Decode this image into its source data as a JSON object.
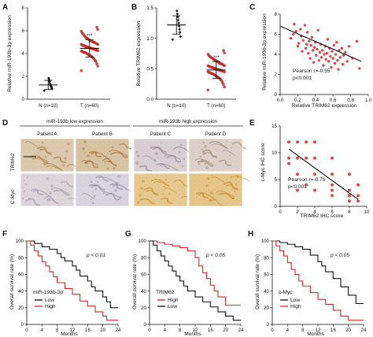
{
  "panels": {
    "A": {
      "label": "A",
      "chart_data": {
        "type": "scatter",
        "categories": [
          "N (n=10)",
          "T (n=60)"
        ],
        "ylabel": "Relative miR-193b-3p expression",
        "xlabel": "",
        "ylim": [
          0,
          8
        ],
        "yticks": [
          0,
          2,
          4,
          6,
          8
        ],
        "significance": [
          "",
          "***"
        ],
        "groups": [
          {
            "mean": 1.25,
            "sd": 0.4,
            "points": [
              0.75,
              0.9,
              1.0,
              1.1,
              1.2,
              1.3,
              1.4,
              1.55,
              1.7,
              1.85
            ]
          },
          {
            "mean": 4.45,
            "sd": 0.75,
            "points": [
              2.5,
              2.9,
              3.1,
              3.3,
              3.4,
              3.55,
              3.6,
              3.7,
              3.75,
              3.8,
              3.85,
              3.9,
              3.95,
              4.0,
              4.05,
              4.1,
              4.1,
              4.15,
              4.2,
              4.2,
              4.25,
              4.3,
              4.3,
              4.35,
              4.4,
              4.4,
              4.45,
              4.45,
              4.5,
              4.5,
              4.55,
              4.55,
              4.6,
              4.6,
              4.65,
              4.7,
              4.7,
              4.75,
              4.8,
              4.8,
              4.85,
              4.9,
              4.95,
              5.0,
              5.0,
              5.05,
              5.1,
              5.15,
              5.2,
              5.25,
              5.3,
              5.35,
              5.4,
              5.5,
              5.6,
              5.7,
              5.8,
              5.95,
              6.1,
              6.3
            ]
          }
        ]
      }
    },
    "B": {
      "label": "B",
      "chart_data": {
        "type": "scatter",
        "categories": [
          "N (n=10)",
          "T (n=60)"
        ],
        "ylabel": "Relative TRIM62 expression",
        "xlabel": "",
        "ylim": [
          0,
          1.5
        ],
        "yticks": [
          0.0,
          0.5,
          1.0,
          1.5
        ],
        "ytick_labels": [
          "0.0",
          "0.5",
          "1.0",
          "1.5"
        ],
        "significance": [
          "",
          "***"
        ],
        "groups": [
          {
            "mean": 1.22,
            "sd": 0.15,
            "points": [
              0.98,
              1.03,
              1.1,
              1.15,
              1.2,
              1.25,
              1.3,
              1.35,
              1.4,
              1.45
            ]
          },
          {
            "mean": 0.48,
            "sd": 0.14,
            "points": [
              0.15,
              0.2,
              0.24,
              0.27,
              0.3,
              0.32,
              0.34,
              0.35,
              0.36,
              0.37,
              0.38,
              0.39,
              0.4,
              0.41,
              0.42,
              0.42,
              0.43,
              0.44,
              0.44,
              0.45,
              0.45,
              0.46,
              0.46,
              0.47,
              0.47,
              0.48,
              0.48,
              0.49,
              0.49,
              0.5,
              0.5,
              0.51,
              0.51,
              0.52,
              0.52,
              0.53,
              0.53,
              0.54,
              0.55,
              0.55,
              0.56,
              0.57,
              0.58,
              0.58,
              0.59,
              0.6,
              0.61,
              0.62,
              0.63,
              0.64,
              0.65,
              0.66,
              0.67,
              0.68,
              0.69,
              0.7,
              0.72,
              0.74,
              0.76,
              0.8
            ]
          }
        ]
      }
    },
    "C": {
      "label": "C",
      "chart_data": {
        "type": "scatter",
        "xlabel": "Relative TRIM62 expression",
        "ylabel": "Relative miR-193b-3p expression",
        "xlim": [
          0,
          1.0
        ],
        "ylim": [
          0,
          8
        ],
        "xticks": [
          0.0,
          0.2,
          0.4,
          0.6,
          0.8,
          1.0
        ],
        "xtick_labels": [
          "0.0",
          "0.2",
          "0.4",
          "0.6",
          "0.8",
          "1.0"
        ],
        "yticks": [
          0,
          2,
          4,
          6,
          8
        ],
        "fit_line": {
          "x": [
            0.0,
            0.92
          ],
          "y": [
            6.8,
            3.3
          ]
        },
        "annotation": [
          "Pearson r=-0.55",
          "p<0.001"
        ],
        "points": [
          {
            "x": 0.12,
            "y": 5.6
          },
          {
            "x": 0.15,
            "y": 6.0
          },
          {
            "x": 0.16,
            "y": 7.0
          },
          {
            "x": 0.18,
            "y": 6.3
          },
          {
            "x": 0.2,
            "y": 4.8
          },
          {
            "x": 0.21,
            "y": 5.1
          },
          {
            "x": 0.23,
            "y": 6.5
          },
          {
            "x": 0.24,
            "y": 5.8
          },
          {
            "x": 0.25,
            "y": 4.3
          },
          {
            "x": 0.26,
            "y": 5.4
          },
          {
            "x": 0.28,
            "y": 6.9
          },
          {
            "x": 0.29,
            "y": 4.6
          },
          {
            "x": 0.3,
            "y": 5.0
          },
          {
            "x": 0.31,
            "y": 6.2
          },
          {
            "x": 0.32,
            "y": 4.1
          },
          {
            "x": 0.33,
            "y": 5.3
          },
          {
            "x": 0.34,
            "y": 3.6
          },
          {
            "x": 0.35,
            "y": 4.9
          },
          {
            "x": 0.36,
            "y": 5.7
          },
          {
            "x": 0.37,
            "y": 4.4
          },
          {
            "x": 0.38,
            "y": 3.2
          },
          {
            "x": 0.39,
            "y": 4.7
          },
          {
            "x": 0.4,
            "y": 5.2
          },
          {
            "x": 0.41,
            "y": 3.9
          },
          {
            "x": 0.42,
            "y": 4.5
          },
          {
            "x": 0.43,
            "y": 6.4
          },
          {
            "x": 0.44,
            "y": 3.4
          },
          {
            "x": 0.45,
            "y": 4.2
          },
          {
            "x": 0.46,
            "y": 5.0
          },
          {
            "x": 0.47,
            "y": 3.7
          },
          {
            "x": 0.48,
            "y": 4.4
          },
          {
            "x": 0.49,
            "y": 2.9
          },
          {
            "x": 0.5,
            "y": 4.0
          },
          {
            "x": 0.51,
            "y": 4.8
          },
          {
            "x": 0.52,
            "y": 3.5
          },
          {
            "x": 0.53,
            "y": 4.1
          },
          {
            "x": 0.54,
            "y": 5.5
          },
          {
            "x": 0.55,
            "y": 3.3
          },
          {
            "x": 0.56,
            "y": 4.6
          },
          {
            "x": 0.57,
            "y": 3.8
          },
          {
            "x": 0.58,
            "y": 2.7
          },
          {
            "x": 0.59,
            "y": 4.3
          },
          {
            "x": 0.6,
            "y": 3.6
          },
          {
            "x": 0.61,
            "y": 4.9
          },
          {
            "x": 0.62,
            "y": 3.1
          },
          {
            "x": 0.63,
            "y": 4.0
          },
          {
            "x": 0.64,
            "y": 5.2
          },
          {
            "x": 0.65,
            "y": 3.4
          },
          {
            "x": 0.66,
            "y": 2.5
          },
          {
            "x": 0.67,
            "y": 4.4
          },
          {
            "x": 0.68,
            "y": 3.7
          },
          {
            "x": 0.7,
            "y": 4.6
          },
          {
            "x": 0.71,
            "y": 3.0
          },
          {
            "x": 0.72,
            "y": 3.9
          },
          {
            "x": 0.74,
            "y": 4.2
          },
          {
            "x": 0.76,
            "y": 3.3
          },
          {
            "x": 0.78,
            "y": 4.8
          },
          {
            "x": 0.82,
            "y": 3.6
          },
          {
            "x": 0.87,
            "y": 5.3
          },
          {
            "x": 0.9,
            "y": 2.6
          }
        ]
      }
    },
    "D": {
      "label": "D",
      "group_low": "miR-193b low expression",
      "group_high": "miR-193b high expression",
      "patients": [
        "Patient A",
        "Patient B",
        "Patient C",
        "Patient D"
      ],
      "rows": [
        "TRIM62",
        "C-Myc"
      ],
      "tiles": [
        {
          "row": 0,
          "col": 0,
          "base": "#dcc9ad",
          "stain": "#a2763e"
        },
        {
          "row": 0,
          "col": 1,
          "base": "#d9c2a0",
          "stain": "#9c6a31"
        },
        {
          "row": 0,
          "col": 2,
          "base": "#d9cfd2",
          "stain": "#8c7e8e"
        },
        {
          "row": 0,
          "col": 3,
          "base": "#dcd0c8",
          "stain": "#97826f"
        },
        {
          "row": 1,
          "col": 0,
          "base": "#dcd6da",
          "stain": "#9a8fa0"
        },
        {
          "row": 1,
          "col": 1,
          "base": "#d8d3de",
          "stain": "#8f86a2"
        },
        {
          "row": 1,
          "col": 2,
          "base": "#e7c98f",
          "stain": "#c28a2c"
        },
        {
          "row": 1,
          "col": 3,
          "base": "#e6c589",
          "stain": "#bd8428"
        }
      ]
    },
    "E": {
      "label": "E",
      "chart_data": {
        "type": "scatter",
        "xlabel": "TRIM62 IHC score",
        "ylabel": "c-Myc IHC score",
        "xlim": [
          0,
          10
        ],
        "ylim": [
          0,
          15
        ],
        "xticks": [
          0,
          2,
          4,
          6,
          8,
          10
        ],
        "yticks": [
          0,
          5,
          10,
          15
        ],
        "fit_line": {
          "x": [
            1,
            9
          ],
          "y": [
            10.7,
            1.3
          ]
        },
        "annotation": [
          "Pearson r=-0.75",
          "p<0.001"
        ],
        "points": [
          {
            "x": 1,
            "y": 12
          },
          {
            "x": 2,
            "y": 12
          },
          {
            "x": 3,
            "y": 12
          },
          {
            "x": 4,
            "y": 12
          },
          {
            "x": 1,
            "y": 9
          },
          {
            "x": 2,
            "y": 9
          },
          {
            "x": 3,
            "y": 9
          },
          {
            "x": 4,
            "y": 9
          },
          {
            "x": 6,
            "y": 9
          },
          {
            "x": 1,
            "y": 8
          },
          {
            "x": 2,
            "y": 6
          },
          {
            "x": 4,
            "y": 6
          },
          {
            "x": 6,
            "y": 6
          },
          {
            "x": 8,
            "y": 6
          },
          {
            "x": 3,
            "y": 4
          },
          {
            "x": 6,
            "y": 4
          },
          {
            "x": 9,
            "y": 4
          },
          {
            "x": 2,
            "y": 3
          },
          {
            "x": 4,
            "y": 3
          },
          {
            "x": 6,
            "y": 3
          },
          {
            "x": 8,
            "y": 3
          },
          {
            "x": 6,
            "y": 2
          },
          {
            "x": 8,
            "y": 2
          },
          {
            "x": 9,
            "y": 2
          },
          {
            "x": 8,
            "y": 1
          },
          {
            "x": 9,
            "y": 1
          }
        ]
      }
    },
    "F": {
      "label": "F",
      "chart_data": {
        "type": "line",
        "xlabel": "Months",
        "ylabel": "Overall survival rate (%)",
        "xlim": [
          0,
          24
        ],
        "ylim": [
          0,
          100
        ],
        "xticks": [
          0,
          4,
          8,
          12,
          16,
          20,
          24
        ],
        "yticks": [
          0,
          20,
          40,
          60,
          80,
          100
        ],
        "annotation": "p < 0.01",
        "legend_title": "miR-193b-3p",
        "series": [
          {
            "name": "Low",
            "color": "#111111",
            "x": [
              0,
              2,
              4,
              6,
              8,
              9,
              10,
              12,
              13,
              14,
              16,
              17,
              18,
              20,
              21,
              22,
              24
            ],
            "y": [
              100,
              97,
              93,
              90,
              85,
              80,
              76,
              70,
              65,
              58,
              52,
              45,
              40,
              33,
              27,
              20,
              20
            ]
          },
          {
            "name": "High",
            "color": "#cc2a2a",
            "x": [
              0,
              1,
              2,
              3,
              4,
              5,
              6,
              7,
              8,
              10,
              12,
              14,
              16,
              18,
              20,
              21,
              24
            ],
            "y": [
              100,
              95,
              88,
              82,
              75,
              70,
              63,
              57,
              50,
              43,
              36,
              28,
              22,
              15,
              10,
              5,
              5
            ]
          }
        ]
      }
    },
    "G": {
      "label": "G",
      "chart_data": {
        "type": "line",
        "xlabel": "Months",
        "ylabel": "Overall survival rate (%)",
        "xlim": [
          0,
          24
        ],
        "ylim": [
          0,
          100
        ],
        "xticks": [
          0,
          4,
          8,
          12,
          16,
          20,
          24
        ],
        "yticks": [
          0,
          20,
          40,
          60,
          80,
          100
        ],
        "annotation": "p < 0.05",
        "legend_title": "TRIM62",
        "series": [
          {
            "name": "High",
            "color": "#cc2a2a",
            "x": [
              0,
              2,
              4,
              6,
              8,
              10,
              12,
              13,
              14,
              15,
              16,
              17,
              18,
              20,
              24
            ],
            "y": [
              100,
              98,
              96,
              94,
              92,
              88,
              80,
              70,
              62,
              55,
              47,
              40,
              33,
              23,
              23
            ]
          },
          {
            "name": "Low",
            "color": "#111111",
            "x": [
              0,
              1,
              2,
              3,
              4,
              5,
              6,
              7,
              8,
              9,
              10,
              12,
              14,
              16,
              18,
              20,
              22,
              24
            ],
            "y": [
              100,
              95,
              88,
              82,
              76,
              70,
              64,
              58,
              52,
              46,
              40,
              33,
              27,
              21,
              15,
              10,
              5,
              5
            ]
          }
        ]
      }
    },
    "H": {
      "label": "H",
      "chart_data": {
        "type": "line",
        "xlabel": "Months",
        "ylabel": "Overall survival rate (%)",
        "xlim": [
          0,
          24
        ],
        "ylim": [
          0,
          100
        ],
        "xticks": [
          0,
          4,
          8,
          12,
          16,
          20,
          24
        ],
        "yticks": [
          0,
          20,
          40,
          60,
          80,
          100
        ],
        "annotation": "p < 0.05",
        "legend_title": "c-Myc",
        "series": [
          {
            "name": "Low",
            "color": "#111111",
            "x": [
              0,
              2,
              4,
              6,
              8,
              10,
              12,
              13,
              14,
              16,
              18,
              20,
              22,
              24
            ],
            "y": [
              100,
              98,
              96,
              93,
              90,
              83,
              75,
              70,
              63,
              55,
              45,
              35,
              25,
              25
            ]
          },
          {
            "name": "High",
            "color": "#cc2a2a",
            "x": [
              0,
              1,
              2,
              3,
              4,
              5,
              6,
              7,
              8,
              10,
              12,
              14,
              16,
              18,
              20,
              24
            ],
            "y": [
              100,
              94,
              88,
              82,
              74,
              66,
              60,
              52,
              46,
              38,
              30,
              24,
              17,
              10,
              5,
              5
            ]
          }
        ]
      }
    }
  }
}
